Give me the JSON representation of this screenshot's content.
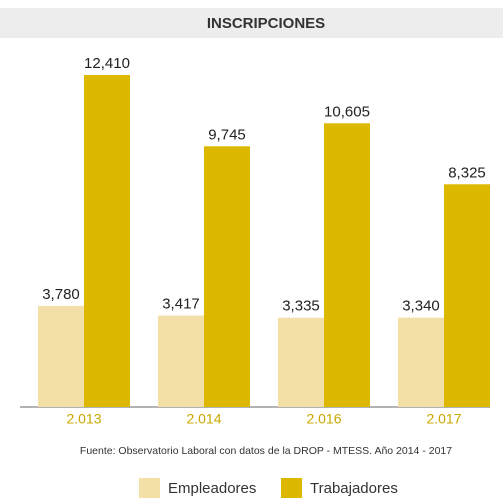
{
  "chart_data": {
    "type": "bar",
    "title": "INSCRIPCIONES",
    "categories": [
      "2.013",
      "2.014",
      "2.016",
      "2.017"
    ],
    "series": [
      {
        "name": "Empleadores",
        "color": "#f3e0a8",
        "values": [
          3780,
          3417,
          3335,
          3340
        ],
        "value_labels": [
          "3,780",
          "3,417",
          "3,335",
          "3,340"
        ]
      },
      {
        "name": "Trabajadores",
        "color": "#dcb900",
        "values": [
          12410,
          9745,
          10605,
          8325
        ],
        "value_labels": [
          "12,410",
          "9,745",
          "10,605",
          "8,325"
        ]
      }
    ],
    "source": "Fuente: Observatorio Laboral con datos de la DROP - MTESS. Año 2014 - 2017"
  }
}
